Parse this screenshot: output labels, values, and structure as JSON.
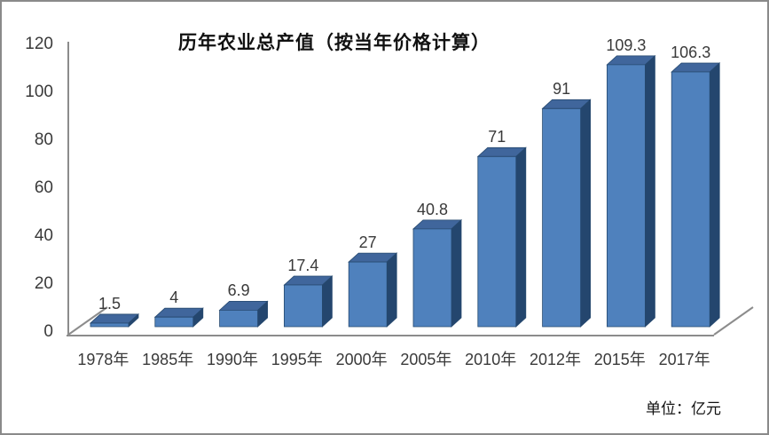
{
  "window": {
    "background": "#ffffff",
    "border_color": "#8a8a8a"
  },
  "chart_data": {
    "type": "bar",
    "variant": "3d-column",
    "title": "历年农业总产值（按当年价格计算）",
    "unit_label": "单位：亿元",
    "xlabel": "",
    "ylabel": "",
    "categories": [
      "1978年",
      "1985年",
      "1990年",
      "1995年",
      "2000年",
      "2005年",
      "2010年",
      "2012年",
      "2015年",
      "2017年"
    ],
    "values": [
      1.5,
      4,
      6.9,
      17.4,
      27,
      40.8,
      71,
      91,
      109.3,
      106.3
    ],
    "data_labels": [
      "1.5",
      "4",
      "6.9",
      "17.4",
      "27",
      "40.8",
      "71",
      "91",
      "109.3",
      "106.3"
    ],
    "y_ticks": [
      0,
      20,
      40,
      60,
      80,
      100,
      120
    ],
    "ylim": [
      0,
      120
    ],
    "grid": false,
    "legend": "none",
    "colors": {
      "bar_front": "#4f81bd",
      "bar_top": "#40669c",
      "bar_side": "#24466e",
      "bar_edge": "#26496f",
      "axis": "#8c8c8c",
      "text": "#3a3a3a"
    }
  }
}
